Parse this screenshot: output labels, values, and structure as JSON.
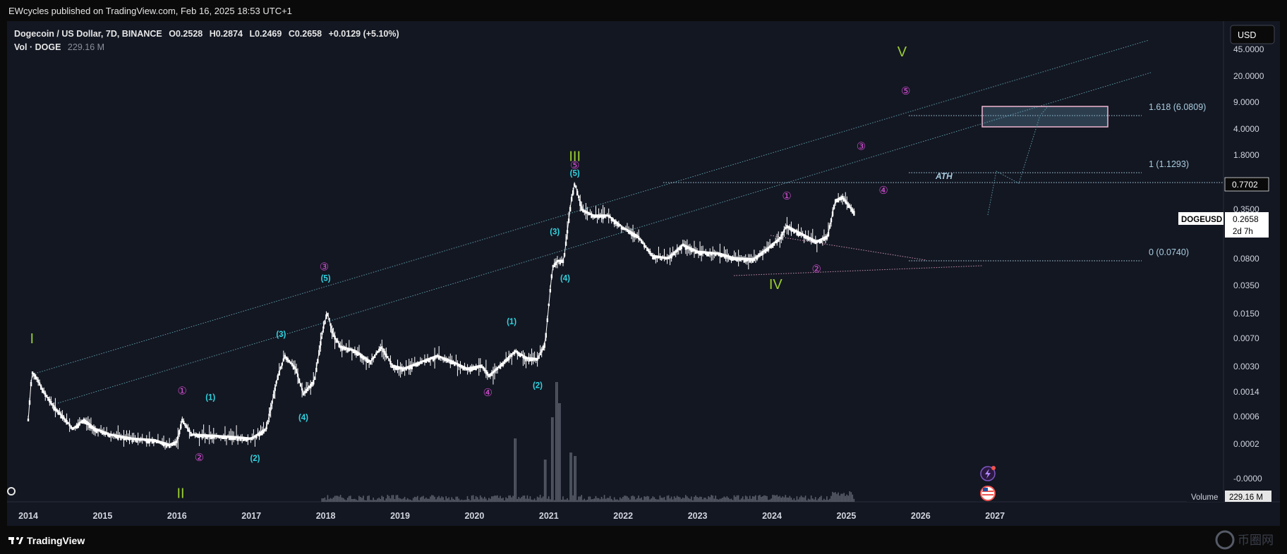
{
  "publish_bar": {
    "text": "EWcycles published on TradingView.com, Feb 16, 2025 18:53 UTC+1"
  },
  "footer": {
    "brand": "TradingView",
    "watermark": "币圈网"
  },
  "symbol_header": {
    "name": "Dogecoin / US Dollar, 7D, BINANCE",
    "open_label": "O",
    "open": "0.2528",
    "high_label": "H",
    "high": "0.2874",
    "low_label": "L",
    "low": "0.2469",
    "close_label": "C",
    "close": "0.2658",
    "change": "+0.0129 (+5.10%)",
    "vol_label": "Vol · DOGE",
    "vol_value": "229.16 M"
  },
  "price_scale": {
    "currency": "USD",
    "ticks": [
      "45.0000",
      "20.0000",
      "9.0000",
      "4.0000",
      "1.8000",
      "0.3500",
      "0.0800",
      "0.0350",
      "0.0150",
      "0.0070",
      "0.0030",
      "0.0014",
      "0.0006",
      "0.0002",
      "-0.0000"
    ],
    "ath_value": "0.7702",
    "last_symbol": "DOGEUSD",
    "last_price": "0.2658",
    "countdown": "2d 7h"
  },
  "volume_badge": {
    "label": "Volume",
    "value": "229.16 M"
  },
  "colors": {
    "background": "#131722",
    "candles": "#ffffff",
    "channel": "#5d9aa8",
    "wave_major": "#9acd32",
    "wave_cyan": "#2fd4e0",
    "wave_magenta": "#d64fd6",
    "fib": "#a9cde0",
    "target_box": "#f0b6d0"
  },
  "chart_data": {
    "type": "candlestick",
    "scale": "log",
    "timeframe": "7D",
    "x_ticks": [
      "2014",
      "2015",
      "2016",
      "2017",
      "2018",
      "2019",
      "2020",
      "2021",
      "2022",
      "2023",
      "2024",
      "2025",
      "2026",
      "2027"
    ],
    "series": [
      {
        "name": "DOGEUSD",
        "points": [
          {
            "t": 2014.0,
            "v": 0.0004
          },
          {
            "t": 2014.05,
            "v": 0.0018
          },
          {
            "t": 2014.1,
            "v": 0.0016
          },
          {
            "t": 2014.2,
            "v": 0.001
          },
          {
            "t": 2014.35,
            "v": 0.0006
          },
          {
            "t": 2014.5,
            "v": 0.0004
          },
          {
            "t": 2014.6,
            "v": 0.0003
          },
          {
            "t": 2014.75,
            "v": 0.0004
          },
          {
            "t": 2014.9,
            "v": 0.0003
          },
          {
            "t": 2015.1,
            "v": 0.00025
          },
          {
            "t": 2015.4,
            "v": 0.00022
          },
          {
            "t": 2015.7,
            "v": 0.00021
          },
          {
            "t": 2015.9,
            "v": 0.00018
          },
          {
            "t": 2016.0,
            "v": 0.0002
          },
          {
            "t": 2016.07,
            "v": 0.0004
          },
          {
            "t": 2016.2,
            "v": 0.00025
          },
          {
            "t": 2016.5,
            "v": 0.00024
          },
          {
            "t": 2016.8,
            "v": 0.00023
          },
          {
            "t": 2017.0,
            "v": 0.00022
          },
          {
            "t": 2017.2,
            "v": 0.0003
          },
          {
            "t": 2017.35,
            "v": 0.0015
          },
          {
            "t": 2017.45,
            "v": 0.003
          },
          {
            "t": 2017.6,
            "v": 0.002
          },
          {
            "t": 2017.7,
            "v": 0.0009
          },
          {
            "t": 2017.85,
            "v": 0.0014
          },
          {
            "t": 2017.95,
            "v": 0.006
          },
          {
            "t": 2018.02,
            "v": 0.012
          },
          {
            "t": 2018.1,
            "v": 0.006
          },
          {
            "t": 2018.2,
            "v": 0.004
          },
          {
            "t": 2018.4,
            "v": 0.0035
          },
          {
            "t": 2018.6,
            "v": 0.0025
          },
          {
            "t": 2018.75,
            "v": 0.004
          },
          {
            "t": 2018.9,
            "v": 0.0022
          },
          {
            "t": 2019.05,
            "v": 0.002
          },
          {
            "t": 2019.3,
            "v": 0.0025
          },
          {
            "t": 2019.5,
            "v": 0.003
          },
          {
            "t": 2019.7,
            "v": 0.0025
          },
          {
            "t": 2019.9,
            "v": 0.002
          },
          {
            "t": 2020.1,
            "v": 0.0022
          },
          {
            "t": 2020.2,
            "v": 0.0016
          },
          {
            "t": 2020.4,
            "v": 0.0025
          },
          {
            "t": 2020.55,
            "v": 0.0035
          },
          {
            "t": 2020.7,
            "v": 0.0028
          },
          {
            "t": 2020.85,
            "v": 0.0027
          },
          {
            "t": 2020.95,
            "v": 0.0045
          },
          {
            "t": 2021.05,
            "v": 0.05
          },
          {
            "t": 2021.12,
            "v": 0.06
          },
          {
            "t": 2021.2,
            "v": 0.06
          },
          {
            "t": 2021.3,
            "v": 0.4
          },
          {
            "t": 2021.35,
            "v": 0.7
          },
          {
            "t": 2021.45,
            "v": 0.3
          },
          {
            "t": 2021.6,
            "v": 0.25
          },
          {
            "t": 2021.8,
            "v": 0.25
          },
          {
            "t": 2022.0,
            "v": 0.17
          },
          {
            "t": 2022.2,
            "v": 0.13
          },
          {
            "t": 2022.4,
            "v": 0.07
          },
          {
            "t": 2022.6,
            "v": 0.065
          },
          {
            "t": 2022.8,
            "v": 0.1
          },
          {
            "t": 2023.0,
            "v": 0.08
          },
          {
            "t": 2023.3,
            "v": 0.075
          },
          {
            "t": 2023.5,
            "v": 0.065
          },
          {
            "t": 2023.75,
            "v": 0.063
          },
          {
            "t": 2023.95,
            "v": 0.09
          },
          {
            "t": 2024.1,
            "v": 0.12
          },
          {
            "t": 2024.2,
            "v": 0.18
          },
          {
            "t": 2024.4,
            "v": 0.14
          },
          {
            "t": 2024.6,
            "v": 0.11
          },
          {
            "t": 2024.75,
            "v": 0.13
          },
          {
            "t": 2024.85,
            "v": 0.4
          },
          {
            "t": 2024.95,
            "v": 0.45
          },
          {
            "t": 2025.05,
            "v": 0.33
          },
          {
            "t": 2025.12,
            "v": 0.2658
          }
        ]
      }
    ],
    "fib_levels": [
      {
        "label": "1.618 (6.0809)",
        "value": 6.0809
      },
      {
        "label": "1 (1.1293)",
        "value": 1.1293
      },
      {
        "label": "0 (0.0740)",
        "value": 0.074
      }
    ],
    "ath": {
      "label": "ATH",
      "value": 0.7702
    },
    "target_zone": {
      "t0": 2025.05,
      "t1": 2026.5,
      "low": 4.2,
      "high": 7.3
    },
    "wave_labels": [
      {
        "text": "I",
        "t": 2014.05,
        "v": 0.0045,
        "style": "major"
      },
      {
        "text": "II",
        "t": 2016.05,
        "v": 3.4e-05,
        "style": "major"
      },
      {
        "text": "III",
        "t": 2021.35,
        "v": 1.4,
        "style": "major"
      },
      {
        "text": "IV",
        "t": 2024.05,
        "v": 0.025,
        "style": "major"
      },
      {
        "text": "V",
        "t": 2025.75,
        "v": 38,
        "style": "major"
      },
      {
        "text": "①",
        "t": 2016.07,
        "v": 0.0009,
        "style": "magenta"
      },
      {
        "text": "②",
        "t": 2016.3,
        "v": 0.00011,
        "style": "magenta"
      },
      {
        "text": "③",
        "t": 2017.98,
        "v": 0.045,
        "style": "magenta"
      },
      {
        "text": "④",
        "t": 2020.18,
        "v": 0.00085,
        "style": "magenta"
      },
      {
        "text": "⑤",
        "t": 2021.35,
        "v": 1.1,
        "style": "magenta"
      },
      {
        "text": "①",
        "t": 2024.2,
        "v": 0.42,
        "style": "magenta"
      },
      {
        "text": "②",
        "t": 2024.6,
        "v": 0.042,
        "style": "magenta"
      },
      {
        "text": "③",
        "t": 2025.2,
        "v": 2.0,
        "style": "magenta"
      },
      {
        "text": "④",
        "t": 2025.5,
        "v": 0.5,
        "style": "magenta"
      },
      {
        "text": "⑤",
        "t": 2025.8,
        "v": 11.5,
        "style": "magenta"
      },
      {
        "text": "(1)",
        "t": 2016.45,
        "v": 0.00075,
        "style": "cyan"
      },
      {
        "text": "(2)",
        "t": 2017.05,
        "v": 0.00011,
        "style": "cyan"
      },
      {
        "text": "(3)",
        "t": 2017.4,
        "v": 0.0055,
        "style": "cyan"
      },
      {
        "text": "(4)",
        "t": 2017.7,
        "v": 0.0004,
        "style": "cyan"
      },
      {
        "text": "(5)",
        "t": 2018.0,
        "v": 0.032,
        "style": "cyan"
      },
      {
        "text": "(1)",
        "t": 2020.5,
        "v": 0.0082,
        "style": "cyan"
      },
      {
        "text": "(2)",
        "t": 2020.85,
        "v": 0.0011,
        "style": "cyan"
      },
      {
        "text": "(3)",
        "t": 2021.08,
        "v": 0.14,
        "style": "cyan"
      },
      {
        "text": "(4)",
        "t": 2021.22,
        "v": 0.032,
        "style": "cyan"
      },
      {
        "text": "(5)",
        "t": 2021.35,
        "v": 0.88,
        "style": "cyan"
      }
    ]
  }
}
